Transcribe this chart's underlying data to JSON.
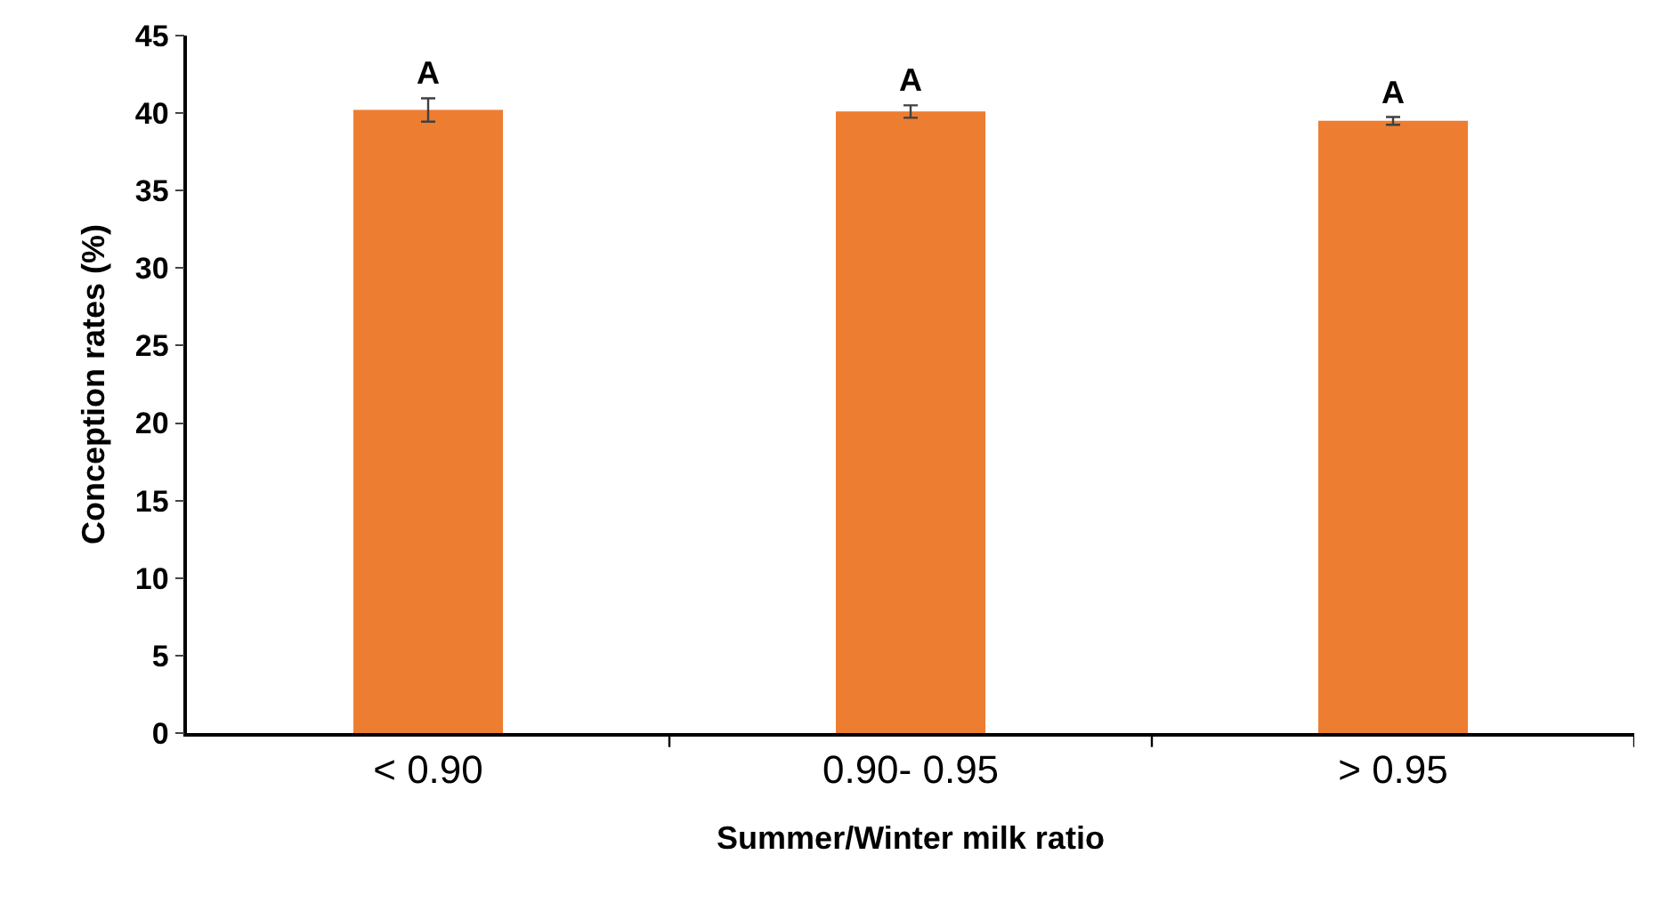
{
  "chart_data": {
    "type": "bar",
    "xlabel": "Summer/Winter milk ratio",
    "ylabel": "Conception rates (%)",
    "categories": [
      "< 0.90",
      "0.90- 0.95",
      "> 0.95"
    ],
    "values": [
      40.2,
      40.1,
      39.5
    ],
    "errors": [
      0.75,
      0.4,
      0.25
    ],
    "color": "#ed7d31",
    "ylim": [
      0,
      45
    ],
    "yticks": [
      0,
      5,
      10,
      15,
      20,
      25,
      30,
      35,
      40,
      45
    ],
    "grid": false,
    "annotations": [
      "A",
      "A",
      "A"
    ]
  }
}
